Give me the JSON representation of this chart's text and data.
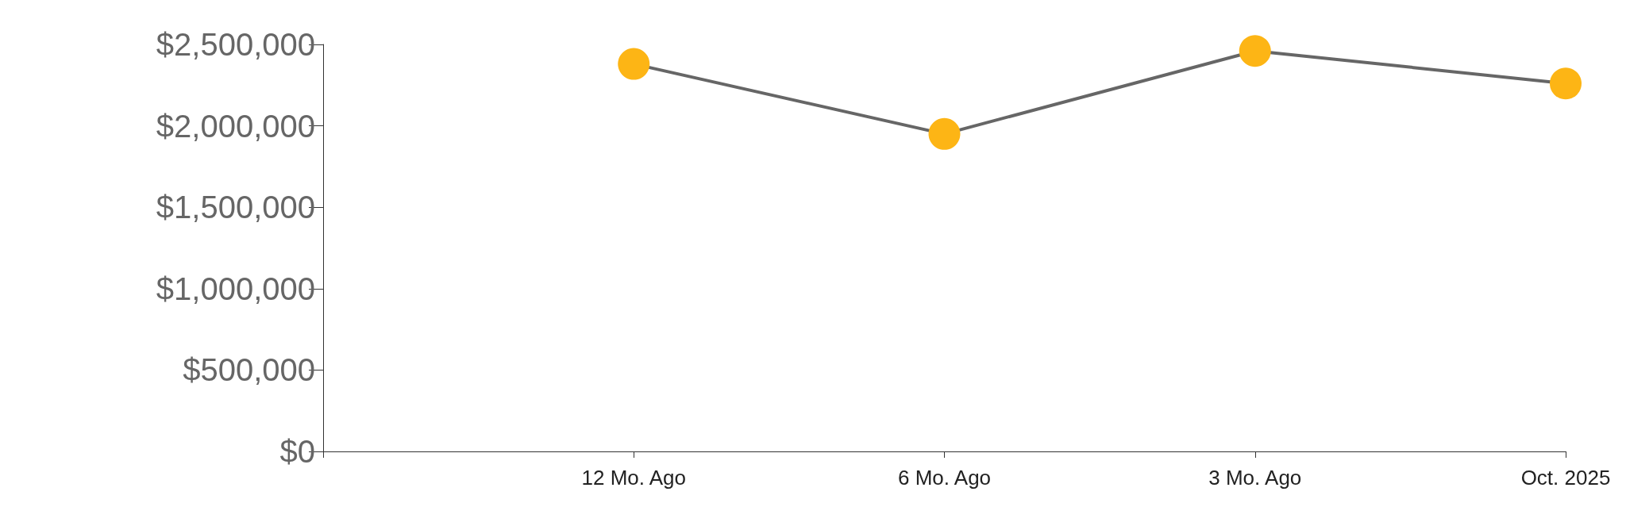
{
  "chart_data": {
    "type": "line",
    "categories": [
      null,
      "12 Mo. Ago",
      "6 Mo. Ago",
      "3 Mo. Ago",
      "Oct. 2025"
    ],
    "series": [
      {
        "color": "#666666",
        "colors": [
          "#fdb515",
          "#fdb515",
          "#fdb515",
          "#fdb515",
          "#fdb515"
        ],
        "values": [
          null,
          2380000,
          1950000,
          2460000,
          2260000
        ]
      }
    ],
    "ylim": [
      0,
      2500000
    ],
    "yticks": [
      {
        "value": 0,
        "label": "$0"
      },
      {
        "value": 500000,
        "label": "$500,000"
      },
      {
        "value": 1000000,
        "label": "$1,000,000"
      },
      {
        "value": 1500000,
        "label": "$1,500,000"
      },
      {
        "value": 2000000,
        "label": "$2,000,000"
      },
      {
        "value": 2500000,
        "label": "$2,500,000"
      }
    ],
    "grid": false,
    "marker": "circle",
    "line_style": "solid"
  }
}
